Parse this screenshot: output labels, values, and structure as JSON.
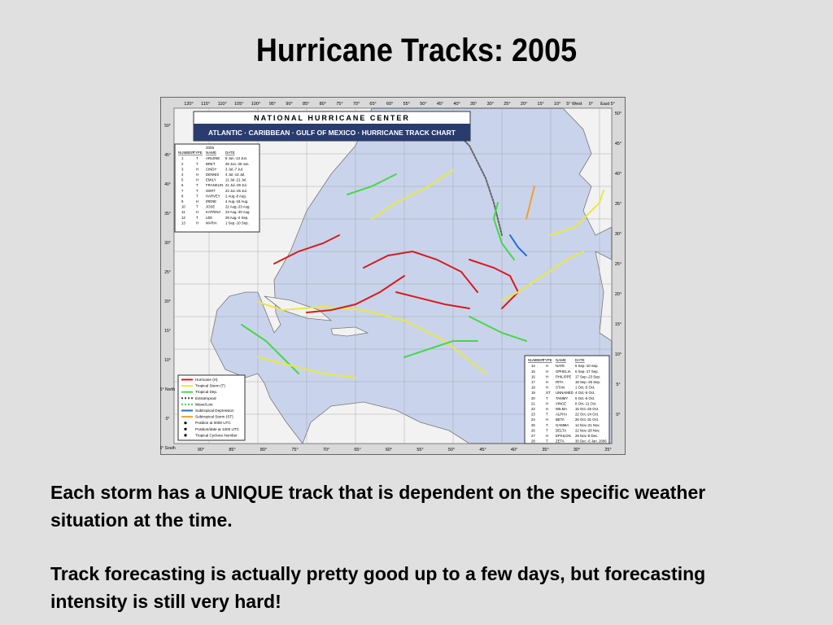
{
  "slide": {
    "title": "Hurricane Tracks: 2005",
    "paragraphs": [
      "Each storm has a UNIQUE track that is dependent on the specific weather situation at the time.",
      "Track forecasting is actually pretty good up to a few days, but forecasting intensity is still very hard!"
    ]
  },
  "map": {
    "header": {
      "line1": "NATIONAL HURRICANE CENTER",
      "line2": "ATLANTIC · CARIBBEAN · GULF OF MEXICO · HURRICANE TRACK CHART"
    },
    "top_labels": [
      "120°",
      "115°",
      "110°",
      "105°",
      "100°",
      "95°",
      "90°",
      "85°",
      "80°",
      "75°",
      "70°",
      "65°",
      "60°",
      "55°",
      "50°",
      "45°",
      "40°",
      "35°",
      "30°",
      "25°",
      "20°",
      "15°",
      "10°",
      "5° West",
      "0°",
      "East 5°"
    ],
    "bottom_labels": [
      "90°",
      "85°",
      "80°",
      "75°",
      "70°",
      "65°",
      "60°",
      "55°",
      "50°",
      "45°",
      "40°",
      "35°",
      "30°",
      "25°"
    ],
    "left_labels": [
      "50°",
      "45°",
      "40°",
      "35°",
      "30°",
      "25°",
      "20°",
      "15°",
      "10°",
      "5° North",
      "0°",
      "5° South"
    ],
    "right_labels": [
      "50°",
      "45°",
      "40°",
      "35°",
      "30°",
      "25°",
      "20°",
      "15°",
      "10°",
      "5°",
      "0°"
    ],
    "table1": {
      "year": "2005",
      "columns": [
        "NUMBER",
        "TYPE",
        "NAME",
        "DATE"
      ],
      "rows": [
        [
          "1",
          "T",
          "ARLENE",
          "8 Jun.-13 Jun."
        ],
        [
          "2",
          "T",
          "BRET",
          "28 Jun.-30 Jun."
        ],
        [
          "3",
          "H",
          "CINDY",
          "3 Jul.-7 Jul."
        ],
        [
          "4",
          "H",
          "DENNIS",
          "4 Jul.-13 Jul."
        ],
        [
          "5",
          "H",
          "EMILY",
          "11 Jul.-21 Jul."
        ],
        [
          "6",
          "T",
          "FRANKLIN",
          "21 Jul.-29 Jul."
        ],
        [
          "7",
          "T",
          "GERT",
          "23 Jul.-25 Jul."
        ],
        [
          "8",
          "T",
          "HARVEY",
          "2 Aug.-8 Aug."
        ],
        [
          "9",
          "H",
          "IRENE",
          "4 Aug.-18 Aug."
        ],
        [
          "10",
          "T",
          "JOSE",
          "22 Aug.-23 Aug."
        ],
        [
          "11",
          "H",
          "KATRINA",
          "23 Aug.-30 Aug."
        ],
        [
          "12",
          "T",
          "LEE",
          "28 Aug.-2 Sep."
        ],
        [
          "13",
          "H",
          "MARIA",
          "1 Sep.-10 Sep."
        ]
      ]
    },
    "table2": {
      "columns": [
        "NUMBER",
        "TYPE",
        "NAME",
        "DATE"
      ],
      "rows": [
        [
          "14",
          "H",
          "NATE",
          "5 Sep.-10 Sep."
        ],
        [
          "15",
          "H",
          "OPHELIA",
          "6 Sep.-17 Sep."
        ],
        [
          "16",
          "H",
          "PHILIPPE",
          "17 Sep.-23 Sep."
        ],
        [
          "17",
          "H",
          "RITA",
          "18 Sep.-26 Sep."
        ],
        [
          "18",
          "H",
          "STAN",
          "1 Oct.-5 Oct."
        ],
        [
          "19",
          "ST",
          "UNNAMED",
          "4 Oct.-5 Oct."
        ],
        [
          "20",
          "T",
          "TAMMY",
          "5 Oct.-6 Oct."
        ],
        [
          "21",
          "H",
          "VINCE",
          "8 Oct.-11 Oct."
        ],
        [
          "22",
          "H",
          "WILMA",
          "15 Oct.-25 Oct."
        ],
        [
          "23",
          "T",
          "ALPHA",
          "22 Oct.-24 Oct."
        ],
        [
          "24",
          "H",
          "BETA",
          "26 Oct.-31 Oct."
        ],
        [
          "25",
          "T",
          "GAMMA",
          "14 Nov.-21 Nov."
        ],
        [
          "26",
          "T",
          "DELTA",
          "22 Nov.-28 Nov."
        ],
        [
          "27",
          "H",
          "EPSILON",
          "29 Nov.-8 Dec."
        ],
        [
          "28",
          "T",
          "ZETA",
          "30 Dec.-6 Jan. 2006"
        ]
      ]
    },
    "legend": [
      "Hurricane (H)",
      "Tropical Storm (T)",
      "Tropical Dep.",
      "Extratropical",
      "Wave/Low",
      "Subtropical Depression",
      "Subtropical Storm (ST)",
      "Position at 0000 UTC",
      "Position/date at 1200 UTC",
      "Tropical Cyclone Number"
    ]
  }
}
